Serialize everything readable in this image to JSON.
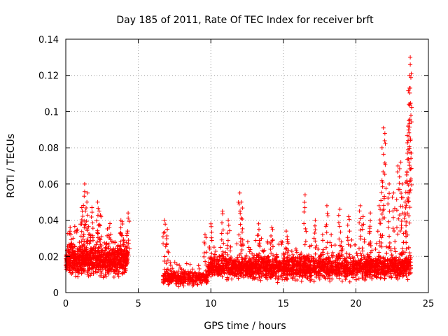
{
  "chart_data": {
    "type": "scatter",
    "title": "Day 185 of 2011, Rate Of TEC Index for receiver brft",
    "xlabel": "GPS time / hours",
    "ylabel": "ROTI / TECUs",
    "xlim": [
      0,
      25
    ],
    "ylim": [
      0,
      0.14
    ],
    "x_ticks": [
      0,
      5,
      10,
      15,
      20,
      25
    ],
    "x_tick_labels": [
      "0",
      "5",
      "10",
      "15",
      "20",
      "25"
    ],
    "y_ticks": [
      0,
      0.02,
      0.04,
      0.06,
      0.08,
      0.1,
      0.12,
      0.14
    ],
    "y_tick_labels": [
      "0",
      "0.02",
      "0.04",
      "0.06",
      "0.08",
      "0.1",
      "0.12",
      "0.14"
    ],
    "grid": true,
    "marker": "+",
    "marker_color": "#ff0000",
    "series": [
      {
        "name": "ROTI",
        "segments": [
          {
            "x_start": 0.0,
            "x_end": 4.3,
            "y_base": 0.018,
            "y_spread": 0.012,
            "count": 900
          },
          {
            "x_start": 6.7,
            "x_end": 9.8,
            "y_base": 0.008,
            "y_spread": 0.005,
            "count": 350
          },
          {
            "x_start": 9.8,
            "x_end": 23.8,
            "y_base": 0.014,
            "y_spread": 0.009,
            "count": 2600
          }
        ],
        "peaks": [
          {
            "x": 0.3,
            "y": 0.036
          },
          {
            "x": 1.1,
            "y": 0.047
          },
          {
            "x": 1.3,
            "y": 0.06
          },
          {
            "x": 1.5,
            "y": 0.055
          },
          {
            "x": 2.2,
            "y": 0.05
          },
          {
            "x": 2.3,
            "y": 0.045
          },
          {
            "x": 3.0,
            "y": 0.036
          },
          {
            "x": 3.8,
            "y": 0.04
          },
          {
            "x": 4.3,
            "y": 0.044
          },
          {
            "x": 1.8,
            "y": 0.047
          },
          {
            "x": 0.5,
            "y": 0.03
          },
          {
            "x": 6.8,
            "y": 0.04
          },
          {
            "x": 7.0,
            "y": 0.035
          },
          {
            "x": 9.6,
            "y": 0.032
          },
          {
            "x": 10.0,
            "y": 0.038
          },
          {
            "x": 10.8,
            "y": 0.045
          },
          {
            "x": 11.2,
            "y": 0.04
          },
          {
            "x": 12.0,
            "y": 0.055
          },
          {
            "x": 12.1,
            "y": 0.05
          },
          {
            "x": 13.3,
            "y": 0.038
          },
          {
            "x": 14.2,
            "y": 0.036
          },
          {
            "x": 15.2,
            "y": 0.034
          },
          {
            "x": 16.5,
            "y": 0.054
          },
          {
            "x": 17.2,
            "y": 0.04
          },
          {
            "x": 18.0,
            "y": 0.048
          },
          {
            "x": 18.9,
            "y": 0.046
          },
          {
            "x": 19.5,
            "y": 0.042
          },
          {
            "x": 20.3,
            "y": 0.048
          },
          {
            "x": 20.5,
            "y": 0.042
          },
          {
            "x": 21.0,
            "y": 0.044
          },
          {
            "x": 21.6,
            "y": 0.048
          },
          {
            "x": 21.8,
            "y": 0.062
          },
          {
            "x": 21.9,
            "y": 0.091
          },
          {
            "x": 22.0,
            "y": 0.088
          },
          {
            "x": 22.3,
            "y": 0.06
          },
          {
            "x": 22.6,
            "y": 0.055
          },
          {
            "x": 22.9,
            "y": 0.07
          },
          {
            "x": 23.1,
            "y": 0.072
          },
          {
            "x": 23.2,
            "y": 0.06
          },
          {
            "x": 23.4,
            "y": 0.05
          },
          {
            "x": 23.5,
            "y": 0.065
          },
          {
            "x": 23.6,
            "y": 0.084
          },
          {
            "x": 23.6,
            "y": 0.092
          },
          {
            "x": 23.65,
            "y": 0.104
          },
          {
            "x": 23.7,
            "y": 0.113
          },
          {
            "x": 23.7,
            "y": 0.12
          },
          {
            "x": 23.75,
            "y": 0.126
          },
          {
            "x": 23.75,
            "y": 0.13
          }
        ]
      }
    ]
  }
}
